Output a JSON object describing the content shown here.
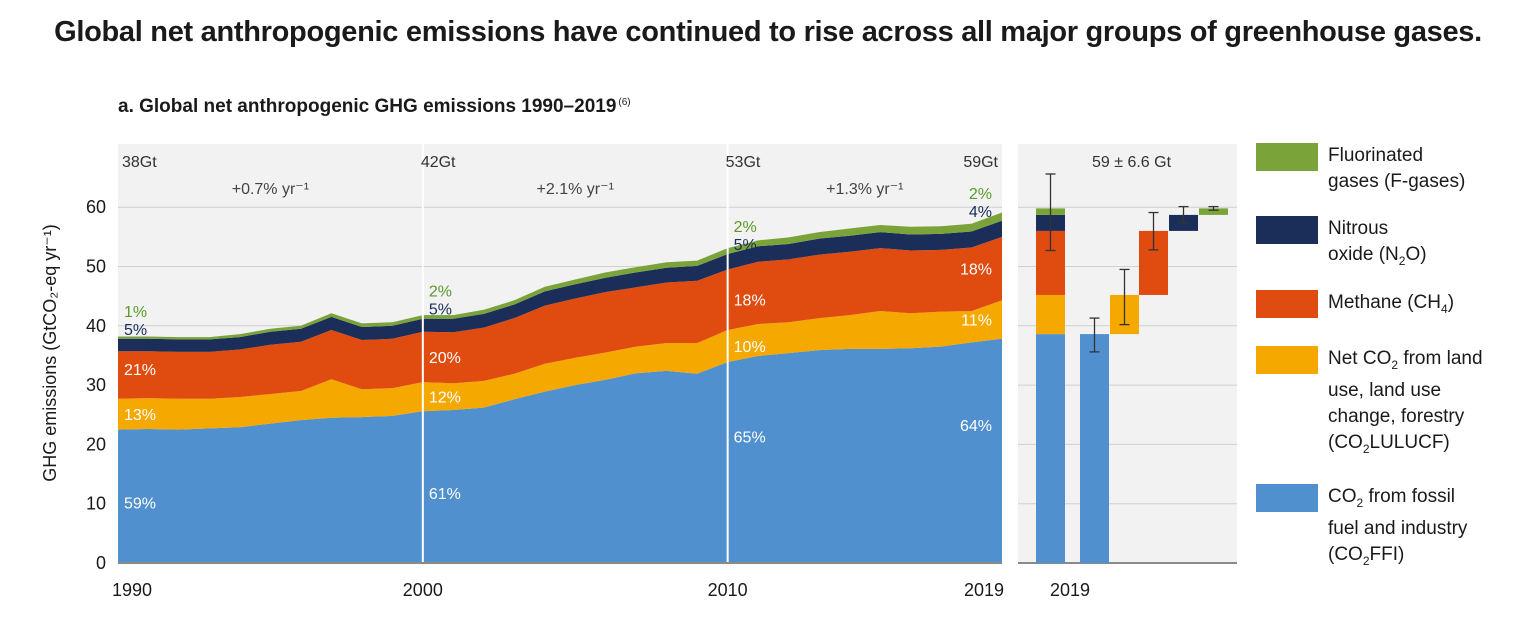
{
  "headline": "Global net anthropogenic emissions have continued to rise across all major groups of greenhouse gases.",
  "panel_title": "a. Global net anthropogenic GHG emissions 1990–2019",
  "panel_note": "(6)",
  "colors": {
    "co2ffi": "#5090cf",
    "co2lulucf": "#f5a800",
    "ch4": "#e04b10",
    "n2o": "#1b2e5a",
    "fgas": "#7aa33a",
    "panel_bg": "#f2f2f2"
  },
  "legend": [
    {
      "key": "fgas",
      "lines": [
        "Fluorinated",
        "gases (F-gases)"
      ]
    },
    {
      "key": "n2o",
      "lines": [
        "Nitrous",
        "oxide (N<sub>2</sub>O)"
      ]
    },
    {
      "key": "ch4",
      "lines": [
        "Methane (CH<sub>4</sub>)"
      ]
    },
    {
      "key": "co2lulucf",
      "lines": [
        "Net CO<sub>2</sub> from land",
        "use, land use",
        "change, forestry",
        "(CO<sub>2</sub>LULUCF)"
      ]
    },
    {
      "key": "co2ffi",
      "lines": [
        "CO<sub>2</sub> from fossil",
        "fuel and industry",
        "(CO<sub>2</sub>FFI)"
      ]
    }
  ],
  "chart_data": [
    {
      "type": "area",
      "stacked": true,
      "ylabel": "GHG emissions (GtCO₂-eq yr⁻¹)",
      "ylim": [
        0,
        66
      ],
      "yticks": [
        0,
        10,
        20,
        30,
        40,
        50,
        60
      ],
      "xticks": [
        1990,
        2000,
        2010,
        2019
      ],
      "grid": true,
      "x": [
        1990,
        1991,
        1992,
        1993,
        1994,
        1995,
        1996,
        1997,
        1998,
        1999,
        2000,
        2001,
        2002,
        2003,
        2004,
        2005,
        2006,
        2007,
        2008,
        2009,
        2010,
        2011,
        2012,
        2013,
        2014,
        2015,
        2016,
        2017,
        2018,
        2019
      ],
      "series": [
        {
          "key": "co2ffi",
          "values": [
            22.5,
            22.6,
            22.5,
            22.7,
            22.9,
            23.5,
            24.1,
            24.5,
            24.6,
            24.8,
            25.6,
            25.8,
            26.2,
            27.6,
            28.9,
            30.0,
            30.9,
            32.0,
            32.4,
            31.9,
            33.9,
            34.9,
            35.4,
            35.9,
            36.1,
            36.1,
            36.2,
            36.5,
            37.2,
            37.8
          ]
        },
        {
          "key": "co2lulucf",
          "values": [
            5.2,
            5.2,
            5.2,
            5.0,
            5.1,
            5.0,
            4.9,
            6.5,
            4.7,
            4.7,
            4.9,
            4.5,
            4.5,
            4.3,
            4.7,
            4.6,
            4.6,
            4.5,
            4.7,
            5.2,
            5.4,
            5.4,
            5.2,
            5.4,
            5.7,
            6.4,
            5.9,
            5.9,
            5.3,
            6.5
          ]
        },
        {
          "key": "ch4",
          "values": [
            8.0,
            7.9,
            7.9,
            7.9,
            8.0,
            8.3,
            8.3,
            8.3,
            8.3,
            8.3,
            8.5,
            8.6,
            9.0,
            9.4,
            9.8,
            10.0,
            10.2,
            10.0,
            10.2,
            10.5,
            10.2,
            10.5,
            10.6,
            10.7,
            10.7,
            10.6,
            10.6,
            10.4,
            10.7,
            10.7
          ]
        },
        {
          "key": "n2o",
          "values": [
            2.1,
            2.1,
            2.1,
            2.1,
            2.1,
            2.2,
            2.2,
            2.2,
            2.2,
            2.2,
            2.2,
            2.3,
            2.3,
            2.3,
            2.4,
            2.4,
            2.4,
            2.5,
            2.5,
            2.5,
            2.6,
            2.6,
            2.6,
            2.7,
            2.7,
            2.7,
            2.7,
            2.7,
            2.7,
            2.7
          ]
        },
        {
          "key": "fgas",
          "values": [
            0.4,
            0.4,
            0.4,
            0.4,
            0.5,
            0.5,
            0.5,
            0.6,
            0.6,
            0.6,
            0.6,
            0.6,
            0.7,
            0.7,
            0.8,
            0.8,
            0.9,
            0.9,
            0.9,
            0.9,
            1.0,
            1.0,
            1.1,
            1.1,
            1.2,
            1.2,
            1.3,
            1.3,
            1.3,
            1.4
          ]
        }
      ],
      "period_markers": [
        {
          "x": 1990,
          "total_label": "38Gt"
        },
        {
          "x": 2000,
          "total_label": "42Gt"
        },
        {
          "x": 2010,
          "total_label": "53Gt"
        },
        {
          "x": 2019,
          "total_label": "59Gt"
        }
      ],
      "growth_rates": [
        {
          "from": 1990,
          "to": 2000,
          "label": "+0.7% yr⁻¹"
        },
        {
          "from": 2000,
          "to": 2010,
          "label": "+2.1% yr⁻¹"
        },
        {
          "from": 2010,
          "to": 2019,
          "label": "+1.3% yr⁻¹"
        }
      ],
      "share_labels": [
        {
          "year": 1990,
          "co2ffi": "59%",
          "co2lulucf": "13%",
          "ch4": "21%",
          "n2o": "5%",
          "fgas": "1%"
        },
        {
          "year": 2000,
          "co2ffi": "61%",
          "co2lulucf": "12%",
          "ch4": "20%",
          "n2o": "5%",
          "fgas": "2%"
        },
        {
          "year": 2010,
          "co2ffi": "65%",
          "co2lulucf": "10%",
          "ch4": "18%",
          "n2o": "5%",
          "fgas": "2%"
        },
        {
          "year": 2019,
          "co2ffi": "64%",
          "co2lulucf": "11%",
          "ch4": "18%",
          "n2o": "4%",
          "fgas": "2%"
        }
      ]
    },
    {
      "type": "bar",
      "waterfall": true,
      "x_label": "2019",
      "total_label": "59 ± 6.6 Gt",
      "ylim": [
        0,
        66
      ],
      "stacked_total": [
        {
          "key": "co2ffi",
          "value": 38.6
        },
        {
          "key": "co2lulucf",
          "value": 6.6
        },
        {
          "key": "ch4",
          "value": 10.8
        },
        {
          "key": "n2o",
          "value": 2.7
        },
        {
          "key": "fgas",
          "value": 1.1
        }
      ],
      "total_error": [
        52.7,
        65.6
      ],
      "components": [
        {
          "key": "co2ffi",
          "bottom": 0,
          "top": 38.6,
          "error": [
            35.6,
            41.3
          ]
        },
        {
          "key": "co2lulucf",
          "bottom": 38.6,
          "top": 45.2,
          "error": [
            40.2,
            49.5
          ]
        },
        {
          "key": "ch4",
          "bottom": 45.2,
          "top": 56.0,
          "error": [
            52.8,
            59.1
          ]
        },
        {
          "key": "n2o",
          "bottom": 56.0,
          "top": 58.7,
          "error": [
            57.4,
            60.1
          ]
        },
        {
          "key": "fgas",
          "bottom": 58.7,
          "top": 59.8,
          "error": [
            59.5,
            60.1
          ]
        }
      ]
    }
  ]
}
